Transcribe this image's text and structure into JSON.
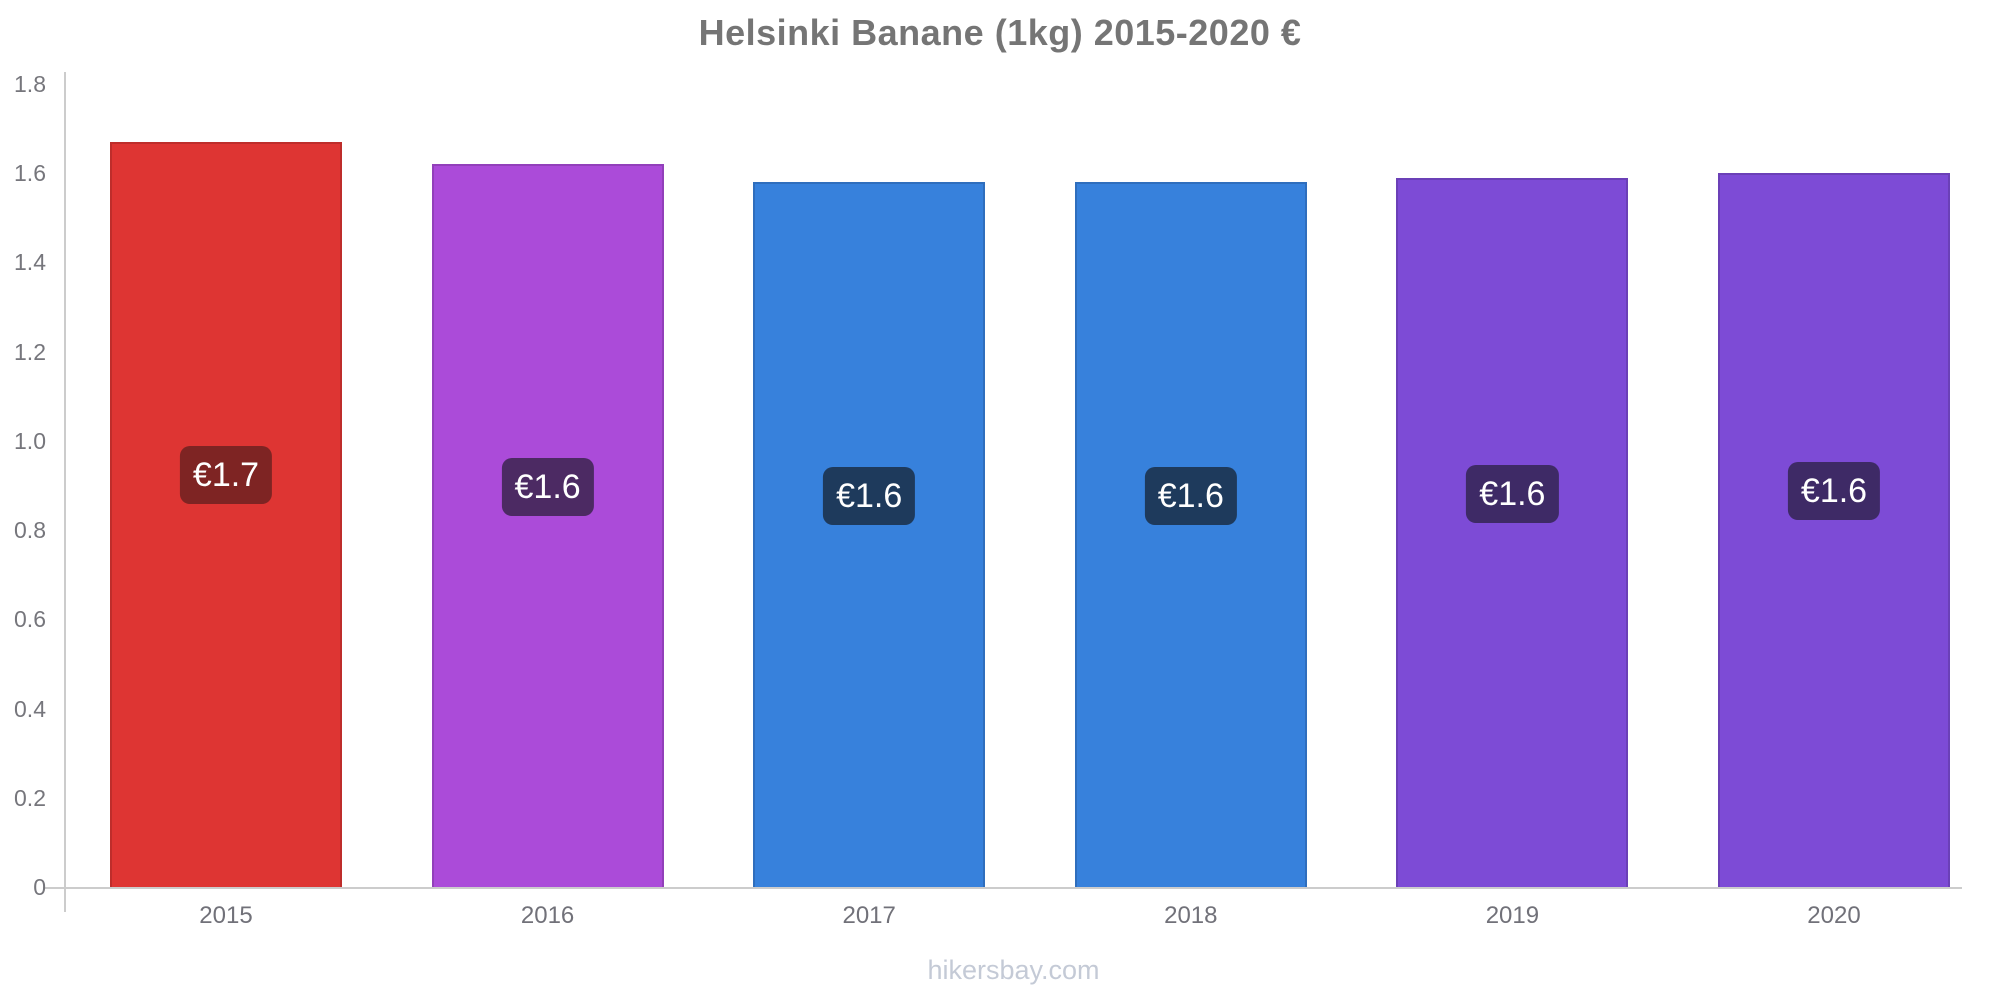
{
  "page": {
    "footer": "hikersbay.com"
  },
  "chart_data": {
    "type": "bar",
    "title": "Helsinki Banane (1kg) 2015-2020 €",
    "categories": [
      "2015",
      "2016",
      "2017",
      "2018",
      "2019",
      "2020"
    ],
    "values": [
      1.67,
      1.62,
      1.58,
      1.58,
      1.59,
      1.6
    ],
    "bar_labels": [
      "€1.7",
      "€1.6",
      "€1.6",
      "€1.6",
      "€1.6",
      "€1.6"
    ],
    "bar_colors": [
      "#de3533",
      "#ab4bd9",
      "#3781dc",
      "#3781dc",
      "#7d4bd6",
      "#7d4bd6"
    ],
    "label_bg_colors": [
      "#7e2423",
      "#4c2a63",
      "#1e3a5c",
      "#1e3a5c",
      "#3e2a66",
      "#3e2a66"
    ],
    "xlabel": "",
    "ylabel": "",
    "ylim": [
      0,
      1.8
    ],
    "yticks": [
      0,
      0.2,
      0.4,
      0.6,
      0.8,
      1.0,
      1.2,
      1.4,
      1.6,
      1.8
    ],
    "ytick_labels": [
      "0",
      "0.2",
      "0.4",
      "0.6",
      "0.8",
      "1.0",
      "1.2",
      "1.4",
      "1.6",
      "1.8"
    ],
    "grid": false,
    "legend": false,
    "axis_color": "#cccccc",
    "tick_text_color": "#76767c",
    "title_color": "#757575",
    "footer_color": "#c4cad6"
  }
}
